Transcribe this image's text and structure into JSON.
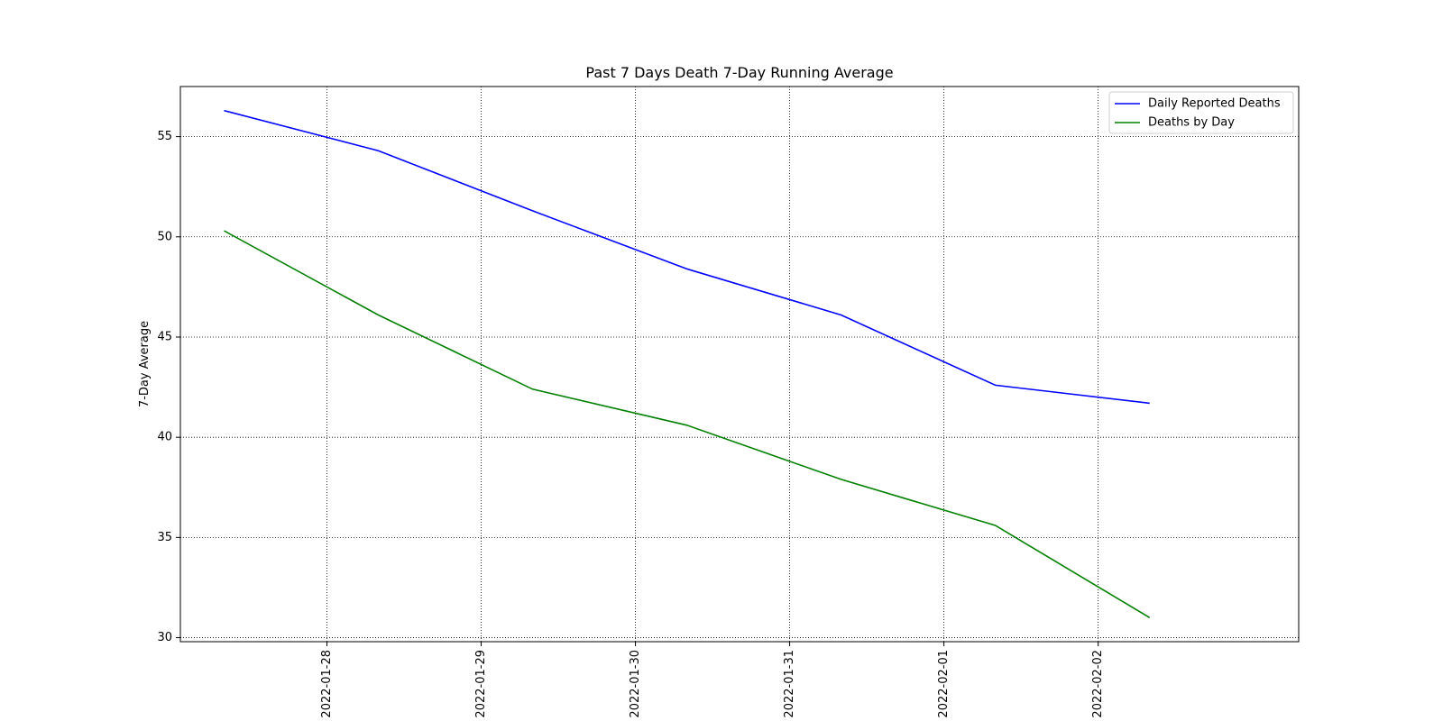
{
  "chart_data": {
    "type": "line",
    "title": "Past 7 Days Death 7-Day Running Average",
    "xlabel": "",
    "ylabel": "7-Day Average",
    "x_type": "datetime",
    "xlim": [
      "2022-01-27 01:12",
      "2022-02-03 07:12"
    ],
    "ylim": [
      29.8,
      57.5
    ],
    "x_ticks": [
      "2022-01-28",
      "2022-01-29",
      "2022-01-30",
      "2022-01-31",
      "2022-02-01",
      "2022-02-02"
    ],
    "y_ticks": [
      30,
      35,
      40,
      45,
      50,
      55
    ],
    "grid": true,
    "grid_style": "dotted",
    "legend_position": "top-right",
    "x": [
      "2022-01-27 08:00",
      "2022-01-28 08:00",
      "2022-01-29 08:00",
      "2022-01-30 08:00",
      "2022-01-31 08:00",
      "2022-02-01 08:00",
      "2022-02-02 08:00"
    ],
    "series": [
      {
        "name": "Daily Reported Deaths",
        "color": "#0000ff",
        "values": [
          56.3,
          54.3,
          51.3,
          48.4,
          46.1,
          42.6,
          41.7
        ]
      },
      {
        "name": "Deaths by Day",
        "color": "#008000",
        "values": [
          50.3,
          46.1,
          42.4,
          40.6,
          37.9,
          35.6,
          31.0
        ]
      }
    ]
  }
}
